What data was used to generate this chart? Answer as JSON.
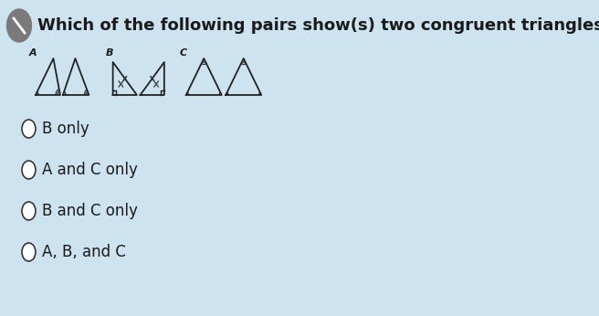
{
  "title": "Which of the following pairs show(s) two congruent triangles?",
  "background_color": "#cde4f0",
  "icon_color": "#5a5a5a",
  "options": [
    "B only",
    "A and C only",
    "B and C only",
    "A, B, and C"
  ],
  "section_labels": [
    "A",
    "B",
    "C"
  ],
  "text_color": "#1a1a1a",
  "radio_color": "#333333",
  "font_size_title": 13,
  "font_size_options": 12
}
